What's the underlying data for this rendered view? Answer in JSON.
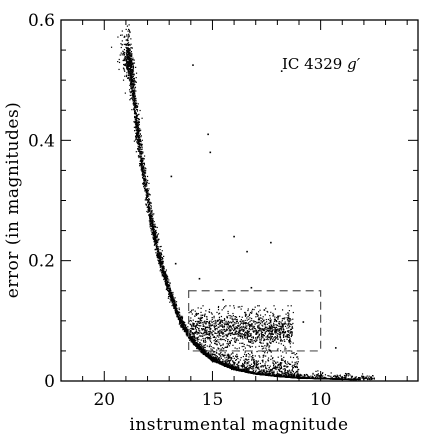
{
  "chart_data": {
    "type": "scatter",
    "title": "",
    "annotation": {
      "text": "IC 4329 ",
      "suffix": "g′"
    },
    "xlabel": "instrumental magnitude",
    "ylabel": "error (in magnitudes)",
    "xlim": [
      22,
      5.5
    ],
    "ylim": [
      0,
      0.6
    ],
    "x_axis_reversed": true,
    "x_ticks": [
      20,
      15,
      10
    ],
    "x_tick_labels": [
      "20",
      "15",
      "10"
    ],
    "y_ticks": [
      0,
      0.2,
      0.4,
      0.6
    ],
    "y_tick_labels": [
      "0",
      "0.2",
      "0.4",
      "0.6"
    ],
    "grid": false,
    "marker_color": "#000000",
    "frame_color": "#000000",
    "box_color": "#555555",
    "selection_box": {
      "x_range": [
        16.1,
        10.0
      ],
      "y_range": [
        0.05,
        0.15
      ]
    },
    "main_sequence": [
      {
        "mag": 18.9,
        "err": 0.54
      },
      {
        "mag": 18.7,
        "err": 0.5
      },
      {
        "mag": 18.5,
        "err": 0.42
      },
      {
        "mag": 18.2,
        "err": 0.35
      },
      {
        "mag": 17.9,
        "err": 0.28
      },
      {
        "mag": 17.5,
        "err": 0.21
      },
      {
        "mag": 17.0,
        "err": 0.15
      },
      {
        "mag": 16.5,
        "err": 0.1
      },
      {
        "mag": 16.0,
        "err": 0.07
      },
      {
        "mag": 15.5,
        "err": 0.05
      },
      {
        "mag": 15.0,
        "err": 0.035
      },
      {
        "mag": 14.0,
        "err": 0.02
      },
      {
        "mag": 13.0,
        "err": 0.012
      },
      {
        "mag": 12.0,
        "err": 0.008
      },
      {
        "mag": 11.0,
        "err": 0.005
      },
      {
        "mag": 10.0,
        "err": 0.004
      },
      {
        "mag": 8.0,
        "err": 0.002
      }
    ],
    "clump": {
      "mag_range": [
        16.1,
        11.3
      ],
      "err_range": [
        0.05,
        0.12
      ]
    },
    "outliers": [
      {
        "mag": 15.9,
        "err": 0.525
      },
      {
        "mag": 11.8,
        "err": 0.515
      },
      {
        "mag": 15.2,
        "err": 0.41
      },
      {
        "mag": 15.1,
        "err": 0.38
      },
      {
        "mag": 16.9,
        "err": 0.34
      },
      {
        "mag": 12.3,
        "err": 0.23
      },
      {
        "mag": 14.0,
        "err": 0.24
      },
      {
        "mag": 13.4,
        "err": 0.215
      },
      {
        "mag": 16.7,
        "err": 0.195
      },
      {
        "mag": 15.6,
        "err": 0.17
      },
      {
        "mag": 13.2,
        "err": 0.155
      },
      {
        "mag": 14.5,
        "err": 0.135
      },
      {
        "mag": 12.6,
        "err": 0.118
      },
      {
        "mag": 10.8,
        "err": 0.098
      },
      {
        "mag": 9.3,
        "err": 0.055
      },
      {
        "mag": 8.7,
        "err": 0.012
      },
      {
        "mag": 7.9,
        "err": 0.006
      }
    ]
  }
}
